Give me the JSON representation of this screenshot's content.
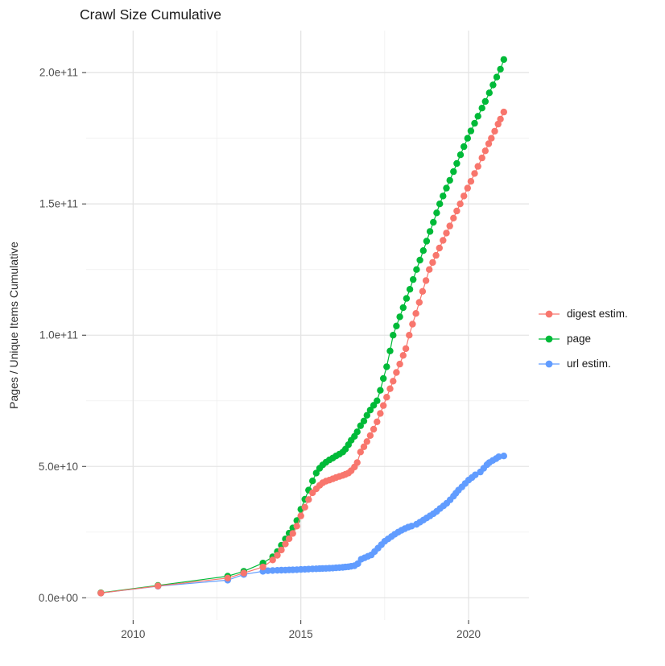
{
  "chart_data": {
    "type": "line",
    "title": "Crawl Size Cumulative",
    "xlabel": "",
    "ylabel": "Pages / Unique Items Cumulative",
    "grid": true,
    "legend_position": "right",
    "xlim": [
      2008.6,
      2021.8
    ],
    "ylim_raw": [
      -8500000000,
      216000000000
    ],
    "x_ticks": {
      "values": [
        2010,
        2015,
        2020
      ],
      "labels": [
        "2010",
        "2015",
        "2020"
      ]
    },
    "x_minor": [
      2012.5,
      2017.5
    ],
    "y_ticks": {
      "values": [
        0,
        50000000000,
        100000000000,
        150000000000,
        200000000000
      ],
      "labels": [
        "0.0e+00",
        "5.0e+10",
        "1.0e+11",
        "1.5e+11",
        "2.0e+11"
      ]
    },
    "y_minor": [
      25000000000,
      75000000000,
      125000000000,
      175000000000
    ],
    "y_unit_multiplier": 1000000000,
    "point_radius": 4.2,
    "series": [
      {
        "name": "digest estim.",
        "color": "#F8766D",
        "points": [
          [
            2009.04,
            1.8
          ],
          [
            2010.74,
            4.5
          ],
          [
            2012.82,
            7.5
          ],
          [
            2013.3,
            9.4
          ],
          [
            2013.87,
            11.7
          ],
          [
            2014.16,
            14.4
          ],
          [
            2014.3,
            16.2
          ],
          [
            2014.42,
            18.2
          ],
          [
            2014.54,
            20.5
          ],
          [
            2014.65,
            22.5
          ],
          [
            2014.76,
            24.5
          ],
          [
            2014.88,
            27.3
          ],
          [
            2015.0,
            31.2
          ],
          [
            2015.12,
            34.5
          ],
          [
            2015.23,
            37.4
          ],
          [
            2015.35,
            40
          ],
          [
            2015.46,
            41.5
          ],
          [
            2015.56,
            42.8
          ],
          [
            2015.65,
            43.8
          ],
          [
            2015.75,
            44.4
          ],
          [
            2015.85,
            44.8
          ],
          [
            2015.95,
            45.3
          ],
          [
            2016.05,
            45.8
          ],
          [
            2016.15,
            46.2
          ],
          [
            2016.25,
            46.6
          ],
          [
            2016.33,
            47
          ],
          [
            2016.42,
            47.5
          ],
          [
            2016.5,
            48.4
          ],
          [
            2016.6,
            49.8
          ],
          [
            2016.68,
            51.5
          ],
          [
            2016.78,
            55.5
          ],
          [
            2016.88,
            57.5
          ],
          [
            2016.97,
            59.5
          ],
          [
            2017.07,
            61.8
          ],
          [
            2017.17,
            64.2
          ],
          [
            2017.27,
            67
          ],
          [
            2017.37,
            70.2
          ],
          [
            2017.46,
            73.2
          ],
          [
            2017.56,
            76.4
          ],
          [
            2017.66,
            79.6
          ],
          [
            2017.75,
            82.5
          ],
          [
            2017.85,
            85.8
          ],
          [
            2017.95,
            89
          ],
          [
            2018.05,
            92.3
          ],
          [
            2018.13,
            94.9
          ],
          [
            2018.23,
            100
          ],
          [
            2018.33,
            104.2
          ],
          [
            2018.43,
            108.3
          ],
          [
            2018.53,
            112.5
          ],
          [
            2018.63,
            116.7
          ],
          [
            2018.73,
            120.8
          ],
          [
            2018.83,
            125
          ],
          [
            2018.93,
            127.7
          ],
          [
            2019.03,
            130.4
          ],
          [
            2019.13,
            133.2
          ],
          [
            2019.24,
            136.1
          ],
          [
            2019.34,
            138.9
          ],
          [
            2019.44,
            141.6
          ],
          [
            2019.55,
            144.6
          ],
          [
            2019.65,
            147.3
          ],
          [
            2019.75,
            150
          ],
          [
            2019.86,
            153
          ],
          [
            2019.97,
            156
          ],
          [
            2020.07,
            158.6
          ],
          [
            2020.18,
            161.6
          ],
          [
            2020.28,
            164.3
          ],
          [
            2020.4,
            167.5
          ],
          [
            2020.5,
            170.2
          ],
          [
            2020.6,
            172.9
          ],
          [
            2020.68,
            175
          ],
          [
            2020.78,
            177.7
          ],
          [
            2020.88,
            180.4
          ],
          [
            2020.95,
            182.3
          ],
          [
            2021.05,
            185
          ]
        ]
      },
      {
        "name": "page",
        "color": "#00BA38",
        "points": [
          [
            2009.04,
            1.9
          ],
          [
            2010.74,
            4.7
          ],
          [
            2012.82,
            8.2
          ],
          [
            2013.3,
            10.1
          ],
          [
            2013.87,
            13.2
          ],
          [
            2014.16,
            15.6
          ],
          [
            2014.3,
            17.6
          ],
          [
            2014.42,
            20
          ],
          [
            2014.54,
            22.4
          ],
          [
            2014.65,
            24.6
          ],
          [
            2014.76,
            26.6
          ],
          [
            2014.88,
            29.4
          ],
          [
            2015.0,
            33.7
          ],
          [
            2015.12,
            37.5
          ],
          [
            2015.23,
            41
          ],
          [
            2015.35,
            44.5
          ],
          [
            2015.46,
            47.5
          ],
          [
            2015.56,
            49.3
          ],
          [
            2015.65,
            50.6
          ],
          [
            2015.75,
            51.6
          ],
          [
            2015.85,
            52.5
          ],
          [
            2015.95,
            53.2
          ],
          [
            2016.05,
            54
          ],
          [
            2016.15,
            54.7
          ],
          [
            2016.25,
            55.5
          ],
          [
            2016.33,
            56.6
          ],
          [
            2016.42,
            58.3
          ],
          [
            2016.5,
            60
          ],
          [
            2016.6,
            61.5
          ],
          [
            2016.68,
            63.2
          ],
          [
            2016.78,
            65.5
          ],
          [
            2016.88,
            67.3
          ],
          [
            2016.97,
            69.5
          ],
          [
            2017.07,
            71.5
          ],
          [
            2017.17,
            73.3
          ],
          [
            2017.27,
            75
          ],
          [
            2017.37,
            79
          ],
          [
            2017.46,
            83.5
          ],
          [
            2017.56,
            88
          ],
          [
            2017.66,
            94
          ],
          [
            2017.75,
            100
          ],
          [
            2017.85,
            103.5
          ],
          [
            2017.95,
            107
          ],
          [
            2018.05,
            110.5
          ],
          [
            2018.15,
            114
          ],
          [
            2018.25,
            117.5
          ],
          [
            2018.35,
            121.2
          ],
          [
            2018.45,
            125
          ],
          [
            2018.55,
            128.6
          ],
          [
            2018.65,
            132.2
          ],
          [
            2018.75,
            135.8
          ],
          [
            2018.85,
            139.5
          ],
          [
            2018.95,
            143
          ],
          [
            2019.05,
            146.6
          ],
          [
            2019.14,
            150
          ],
          [
            2019.24,
            153
          ],
          [
            2019.34,
            156
          ],
          [
            2019.44,
            159
          ],
          [
            2019.55,
            162.3
          ],
          [
            2019.65,
            165.4
          ],
          [
            2019.76,
            168.7
          ],
          [
            2019.86,
            171.8
          ],
          [
            2019.97,
            175
          ],
          [
            2020.07,
            177.8
          ],
          [
            2020.18,
            180.7
          ],
          [
            2020.28,
            183.4
          ],
          [
            2020.4,
            186.5
          ],
          [
            2020.5,
            189
          ],
          [
            2020.62,
            192.3
          ],
          [
            2020.73,
            195.3
          ],
          [
            2020.84,
            198.3
          ],
          [
            2020.95,
            201.3
          ],
          [
            2021.05,
            205
          ]
        ]
      },
      {
        "name": "url estim.",
        "color": "#619CFF",
        "points": [
          [
            2009.04,
            1.8
          ],
          [
            2010.74,
            4.4
          ],
          [
            2012.82,
            6.7
          ],
          [
            2013.3,
            8.9
          ],
          [
            2013.87,
            10.1
          ],
          [
            2014.02,
            10.3
          ],
          [
            2014.16,
            10.4
          ],
          [
            2014.3,
            10.45
          ],
          [
            2014.42,
            10.5
          ],
          [
            2014.54,
            10.55
          ],
          [
            2014.65,
            10.6
          ],
          [
            2014.76,
            10.65
          ],
          [
            2014.88,
            10.7
          ],
          [
            2015.0,
            10.8
          ],
          [
            2015.12,
            10.85
          ],
          [
            2015.23,
            10.9
          ],
          [
            2015.35,
            11
          ],
          [
            2015.46,
            11.05
          ],
          [
            2015.56,
            11.1
          ],
          [
            2015.65,
            11.15
          ],
          [
            2015.75,
            11.2
          ],
          [
            2015.85,
            11.25
          ],
          [
            2015.95,
            11.3
          ],
          [
            2016.05,
            11.4
          ],
          [
            2016.15,
            11.5
          ],
          [
            2016.25,
            11.6
          ],
          [
            2016.33,
            11.7
          ],
          [
            2016.42,
            11.8
          ],
          [
            2016.5,
            12
          ],
          [
            2016.6,
            12.2
          ],
          [
            2016.7,
            13
          ],
          [
            2016.8,
            14.7
          ],
          [
            2016.9,
            15.2
          ],
          [
            2017.0,
            15.8
          ],
          [
            2017.1,
            16.3
          ],
          [
            2017.2,
            17.6
          ],
          [
            2017.3,
            18.9
          ],
          [
            2017.4,
            20.2
          ],
          [
            2017.5,
            21.5
          ],
          [
            2017.6,
            22.4
          ],
          [
            2017.7,
            23.3
          ],
          [
            2017.8,
            24.2
          ],
          [
            2017.9,
            25
          ],
          [
            2018.0,
            25.7
          ],
          [
            2018.1,
            26.3
          ],
          [
            2018.2,
            26.9
          ],
          [
            2018.3,
            27.3
          ],
          [
            2018.45,
            28
          ],
          [
            2018.55,
            28.8
          ],
          [
            2018.65,
            29.6
          ],
          [
            2018.75,
            30.4
          ],
          [
            2018.85,
            31.2
          ],
          [
            2018.95,
            32
          ],
          [
            2019.05,
            32.9
          ],
          [
            2019.15,
            34
          ],
          [
            2019.25,
            35
          ],
          [
            2019.35,
            36
          ],
          [
            2019.45,
            37.3
          ],
          [
            2019.55,
            38.7
          ],
          [
            2019.62,
            39.8
          ],
          [
            2019.7,
            41
          ],
          [
            2019.8,
            42.2
          ],
          [
            2019.9,
            43.5
          ],
          [
            2020.0,
            44.8
          ],
          [
            2020.1,
            45.8
          ],
          [
            2020.2,
            46.8
          ],
          [
            2020.35,
            47.9
          ],
          [
            2020.45,
            49.3
          ],
          [
            2020.55,
            50.7
          ],
          [
            2020.62,
            51.5
          ],
          [
            2020.72,
            52.3
          ],
          [
            2020.82,
            53
          ],
          [
            2020.9,
            53.7
          ],
          [
            2021.05,
            54
          ]
        ]
      }
    ],
    "colors": {
      "major_grid": "#e4e4e4",
      "minor_grid": "#efefef",
      "tick": "#333333",
      "tick_label": "#4d4d4d"
    }
  }
}
